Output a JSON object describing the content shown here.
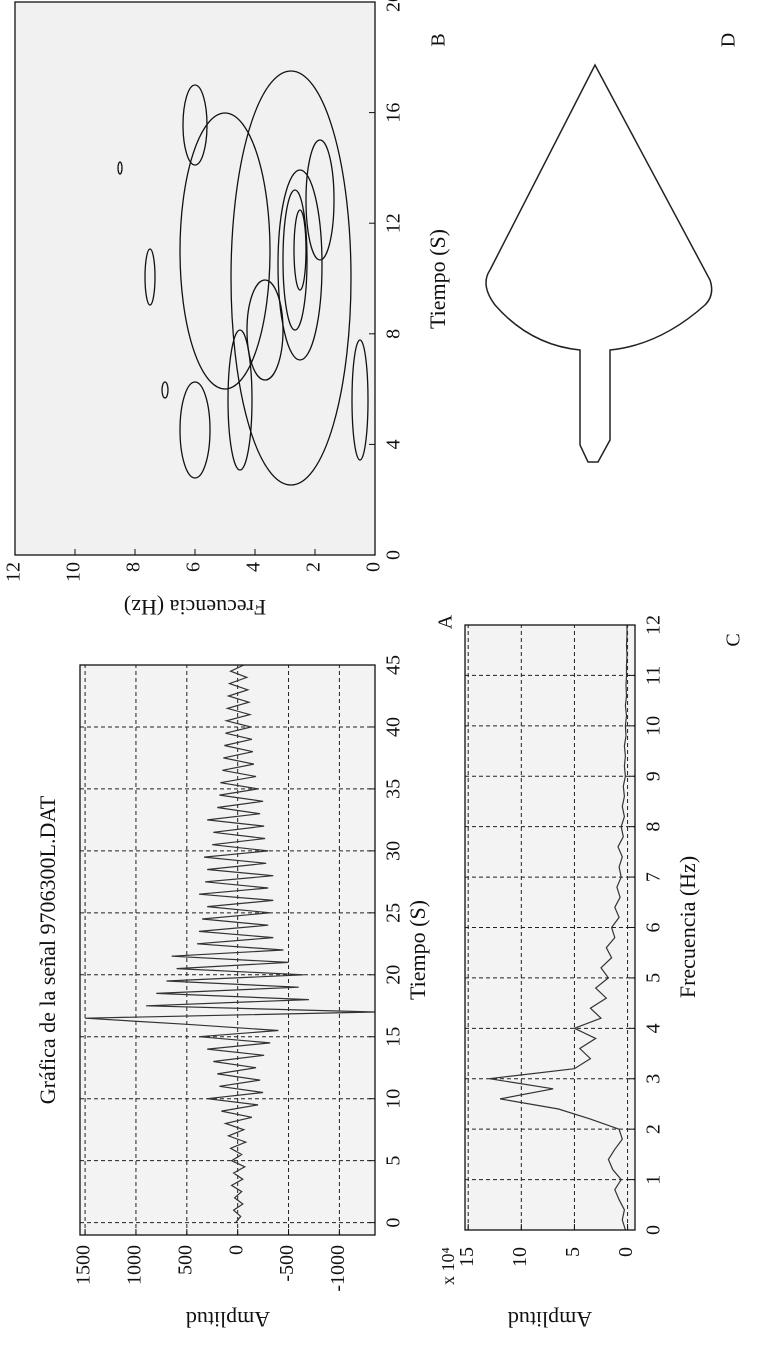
{
  "chart_data": [
    {
      "type": "line",
      "title": "Gráfica de la señal 9706300L.DAT",
      "xlabel": "Tiempo (S)",
      "ylabel": "Amplitud",
      "x": [
        0,
        0.5,
        1,
        1.5,
        2,
        2.5,
        3,
        3.5,
        4,
        4.5,
        5,
        5.5,
        6,
        6.5,
        7,
        7.5,
        8,
        8.5,
        9,
        9.5,
        10,
        10.5,
        11,
        11.5,
        12,
        12.5,
        13,
        13.5,
        14,
        14.5,
        15,
        15.5,
        16,
        16.5,
        17,
        17.5,
        18,
        18.5,
        19,
        19.5,
        20,
        20.5,
        21,
        21.5,
        22,
        22.5,
        23,
        23.5,
        24,
        24.5,
        25,
        25.5,
        26,
        26.5,
        27,
        27.5,
        28,
        28.5,
        29,
        29.5,
        30,
        30.5,
        31,
        31.5,
        32,
        32.5,
        33,
        33.5,
        34,
        34.5,
        35,
        35.5,
        36,
        36.5,
        37,
        37.5,
        38,
        38.5,
        39,
        39.5,
        40,
        40.5,
        41,
        41.5,
        42,
        42.5,
        43,
        43.5,
        44,
        44.5,
        45
      ],
      "series": [
        {
          "color": "#333333",
          "values": [
            20,
            -30,
            40,
            -50,
            30,
            -40,
            60,
            -50,
            40,
            -70,
            60,
            -40,
            70,
            -80,
            90,
            -60,
            120,
            -140,
            160,
            -200,
            300,
            -250,
            180,
            -220,
            200,
            -180,
            240,
            -260,
            300,
            -320,
            380,
            -400,
            500,
            1500,
            -1350,
            900,
            -700,
            800,
            -600,
            700,
            -650,
            600,
            -500,
            650,
            -450,
            400,
            -350,
            380,
            -300,
            350,
            -320,
            300,
            -350,
            380,
            -300,
            320,
            -350,
            300,
            -280,
            330,
            -300,
            250,
            -270,
            240,
            -260,
            300,
            -220,
            200,
            -250,
            180,
            -200,
            170,
            -180,
            150,
            -160,
            140,
            -150,
            130,
            -140,
            120,
            -130,
            110,
            -120,
            100,
            -110,
            90,
            -100,
            80,
            -90,
            70,
            -60
          ]
        }
      ],
      "xlim": [
        -1,
        45
      ],
      "ylim": [
        -1350,
        1550
      ],
      "xticks": [
        0,
        5,
        10,
        15,
        20,
        25,
        30,
        35,
        40,
        45
      ],
      "yticks": [
        1500,
        1000,
        500,
        0,
        -500,
        -1000
      ],
      "grid": true
    },
    {
      "type": "contour",
      "xlabel": "Tiempo (S)",
      "ylabel": "Frecuencia (Hz)",
      "xlim": [
        0,
        20
      ],
      "ylim": [
        0,
        12
      ],
      "xticks": [
        0,
        4,
        8,
        12,
        16,
        20
      ],
      "yticks": [
        0,
        2,
        4,
        6,
        8,
        10,
        12
      ],
      "grid": false
    },
    {
      "type": "line",
      "xlabel": "Frecuencia (Hz)",
      "ylabel": "Amplitud",
      "scale_label": "x 10⁴",
      "x": [
        0,
        0.2,
        0.4,
        0.6,
        0.8,
        1,
        1.2,
        1.4,
        1.6,
        1.8,
        2,
        2.2,
        2.4,
        2.6,
        2.8,
        3,
        3.2,
        3.4,
        3.6,
        3.8,
        4,
        4.2,
        4.4,
        4.6,
        4.8,
        5,
        5.2,
        5.4,
        5.6,
        5.8,
        6,
        6.2,
        6.4,
        6.6,
        6.8,
        7,
        7.2,
        7.4,
        7.6,
        7.8,
        8,
        8.2,
        8.4,
        8.6,
        8.8,
        9,
        9.2,
        9.4,
        9.6,
        9.8,
        10,
        10.2,
        10.4,
        10.6,
        10.8,
        11,
        11.2,
        11.4,
        11.6,
        11.8,
        12
      ],
      "series": [
        {
          "color": "#333333",
          "values": [
            0.2,
            0.5,
            0.3,
            0.8,
            1.2,
            0.6,
            1.4,
            1.8,
            1.2,
            0.5,
            0.8,
            3.5,
            6.5,
            12,
            7,
            13,
            5,
            3.5,
            4.5,
            3,
            5,
            2.5,
            3.5,
            2,
            3,
            1.8,
            2.5,
            1.5,
            2,
            1.2,
            1.5,
            0.8,
            1.2,
            0.7,
            1,
            0.6,
            0.8,
            0.5,
            0.9,
            0.4,
            0.6,
            0.3,
            0.5,
            0.3,
            0.4,
            0.2,
            0.3,
            0.2,
            0.3,
            0.15,
            0.2,
            0.1,
            0.2,
            0.1,
            0.15,
            0.1,
            0.1,
            0.05,
            0.1,
            0.05,
            0.05
          ]
        }
      ],
      "xlim": [
        0,
        12
      ],
      "ylim": [
        -0.7,
        15.3
      ],
      "xticks": [
        0,
        1,
        2,
        3,
        4,
        5,
        6,
        7,
        8,
        9,
        10,
        11,
        12
      ],
      "yticks": [
        0,
        5,
        10,
        15
      ],
      "grid": true
    }
  ],
  "panel_labels": [
    "A",
    "B",
    "C",
    "D"
  ]
}
